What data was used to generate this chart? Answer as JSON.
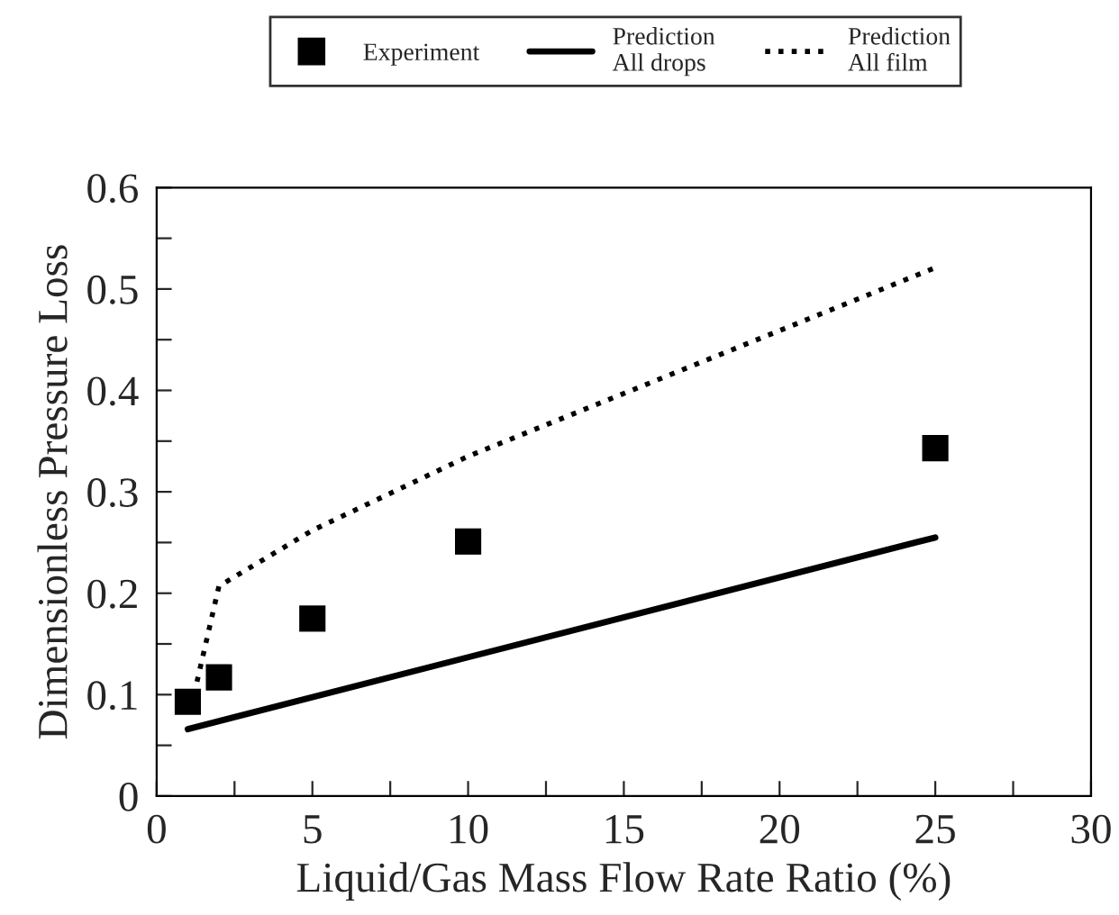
{
  "chart_data": {
    "type": "line",
    "xlabel": "Liquid/Gas Mass Flow Rate Ratio (%)",
    "ylabel": "Dimensionless Pressure Loss",
    "series": [
      {
        "name": "Experiment",
        "type": "scatter",
        "marker": "square",
        "color": "#000000",
        "x": [
          1,
          2,
          5,
          10,
          25
        ],
        "values": [
          0.093,
          0.117,
          0.175,
          0.251,
          0.343
        ]
      },
      {
        "name": "Prediction\nAll drops",
        "line_style": "solid",
        "color": "#000000",
        "x": [
          1,
          25
        ],
        "values": [
          0.066,
          0.255
        ]
      },
      {
        "name": "Prediction\nAll film",
        "line_style": "dotted",
        "color": "#000000",
        "x": [
          1.2,
          2,
          5,
          10,
          25
        ],
        "values": [
          0.1,
          0.207,
          0.262,
          0.335,
          0.521
        ]
      }
    ],
    "xlim": [
      0,
      30
    ],
    "ylim": [
      0,
      0.6
    ],
    "xticks": [
      0,
      {
        "value": 2.5,
        "label": null
      },
      5,
      {
        "value": 7.5,
        "label": null
      },
      10,
      {
        "value": 12.5,
        "label": null
      },
      15,
      {
        "value": 17.5,
        "label": null
      },
      20,
      {
        "value": 22.5,
        "label": null
      },
      25,
      {
        "value": 27.5,
        "label": null
      },
      30
    ],
    "yticks": [
      0,
      {
        "value": 0.05,
        "label": null
      },
      0.1,
      {
        "value": 0.15,
        "label": null
      },
      0.2,
      {
        "value": 0.25,
        "label": null
      },
      0.3,
      {
        "value": 0.35,
        "label": null
      },
      0.4,
      {
        "value": 0.45,
        "label": null
      },
      0.5,
      {
        "value": 0.55,
        "label": null
      },
      0.6
    ],
    "grid": false,
    "legend": "top"
  }
}
